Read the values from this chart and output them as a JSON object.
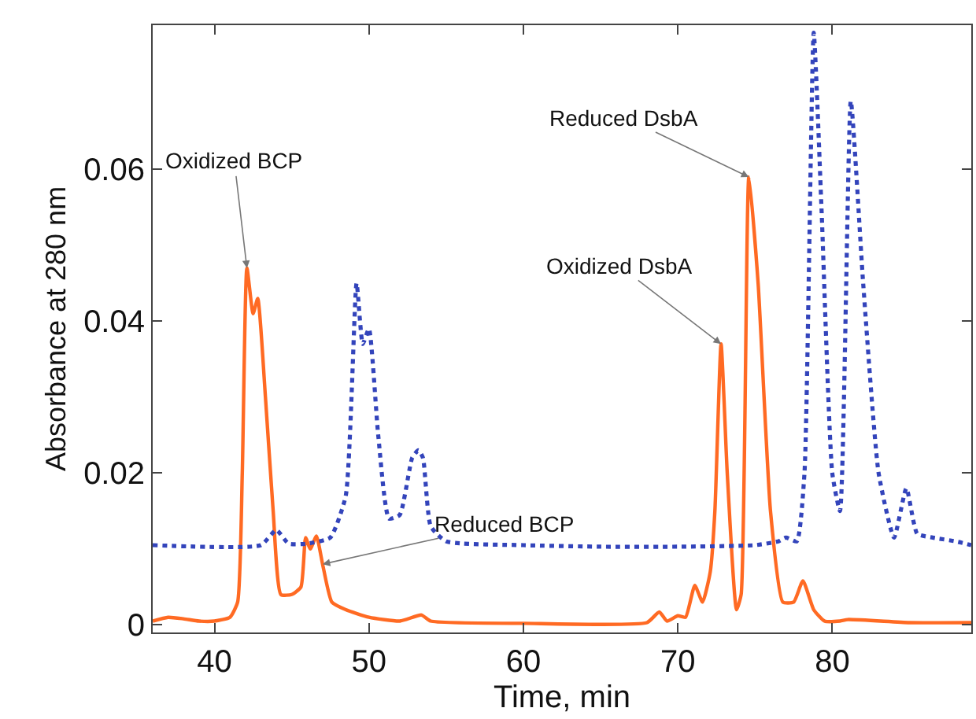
{
  "chart_data": {
    "type": "line",
    "xlabel": "Time, min",
    "ylabel": "Absorbance at 280 nm",
    "xlim": [
      36,
      89
    ],
    "ylim": [
      -0.001,
      0.079
    ],
    "xticks": [
      40,
      50,
      60,
      70,
      80
    ],
    "yticks": [
      0,
      0.02,
      0.04,
      0.06
    ],
    "marker": "none",
    "series": [
      {
        "color": "#ff6a23",
        "line_style": "solid",
        "x": [
          36,
          37,
          38,
          39,
          40,
          41,
          41.5,
          41.8,
          42.1,
          42.5,
          42.8,
          43.3,
          43.8,
          44.3,
          45,
          45.6,
          45.9,
          46.2,
          46.6,
          47,
          47.6,
          48.5,
          50,
          52,
          53.4,
          54,
          60,
          68,
          68.8,
          69.3,
          70,
          70.5,
          71.1,
          71.6,
          72.1,
          72.4,
          72.8,
          73.2,
          73.8,
          74.1,
          74.6,
          75.2,
          76,
          76.8,
          77.5,
          78.1,
          78.8,
          79.5,
          80.5,
          81,
          85,
          89
        ],
        "values": [
          0.0005,
          0.001,
          0.0008,
          0.0005,
          0.0005,
          0.001,
          0.003,
          0.02,
          0.047,
          0.041,
          0.043,
          0.03,
          0.015,
          0.004,
          0.004,
          0.005,
          0.0115,
          0.01,
          0.0117,
          0.008,
          0.003,
          0.002,
          0.001,
          0.0005,
          0.0013,
          0.0005,
          0.0002,
          0.0003,
          0.0017,
          0.0005,
          0.0012,
          0.001,
          0.0052,
          0.003,
          0.007,
          0.015,
          0.037,
          0.02,
          0.002,
          0.004,
          0.059,
          0.045,
          0.015,
          0.003,
          0.003,
          0.0058,
          0.002,
          0.0005,
          0.0005,
          0.0007,
          0.0003,
          0.0003
        ]
      },
      {
        "color": "#3344bb",
        "line_style": "dotted",
        "x": [
          36,
          43,
          44,
          44.8,
          46,
          47.5,
          48.5,
          49.2,
          49.6,
          50,
          50.6,
          51.3,
          52,
          52.8,
          53.2,
          53.5,
          54,
          55,
          60,
          65,
          70,
          75,
          76.5,
          77,
          77.7,
          78.2,
          78.8,
          79.3,
          80,
          80.5,
          81.2,
          82,
          83,
          84,
          84.8,
          85.5,
          86.5,
          88,
          89
        ],
        "values": [
          0.0105,
          0.0105,
          0.0125,
          0.0107,
          0.0107,
          0.0115,
          0.017,
          0.045,
          0.037,
          0.039,
          0.025,
          0.014,
          0.0145,
          0.022,
          0.023,
          0.022,
          0.013,
          0.011,
          0.0105,
          0.0103,
          0.0103,
          0.0105,
          0.011,
          0.0115,
          0.011,
          0.02,
          0.078,
          0.055,
          0.02,
          0.015,
          0.069,
          0.045,
          0.02,
          0.0115,
          0.018,
          0.012,
          0.0115,
          0.011,
          0.0105
        ]
      }
    ],
    "annotations": [
      {
        "text": "Oxidized BCP",
        "x": 42.1,
        "y": 0.047
      },
      {
        "text": "Reduced BCP",
        "x": 47,
        "y": 0.008
      },
      {
        "text": "Oxidized DsbA",
        "x": 72.8,
        "y": 0.037
      },
      {
        "text": "Reduced DsbA",
        "x": 74.6,
        "y": 0.059
      }
    ]
  }
}
